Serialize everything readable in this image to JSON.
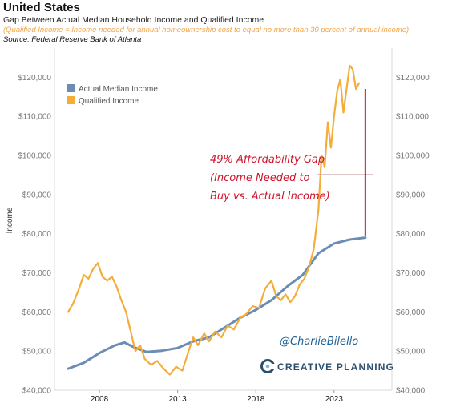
{
  "header": {
    "title": "United States",
    "subtitle": "Gap Between Actual Median Household Income and Qualified Income",
    "note": "(Qualified Income = Income needed for annual homeownership cost to equal no more than 30 percent of annual income)",
    "source": "Source: Federal Reserve Bank of Atlanta"
  },
  "colors": {
    "actual": "#6b8db5",
    "qualified": "#f4ad3a",
    "gap": "#d0142c"
  },
  "chart_data": {
    "type": "line",
    "xlabel": "",
    "ylabel": "Income",
    "xlim": [
      2006.0,
      2026.0
    ],
    "ylim": [
      40000,
      125000
    ],
    "x_ticks": [
      2008,
      2013,
      2018,
      2023
    ],
    "x_tick_labels": [
      "2008",
      "2013",
      "2018",
      "2023"
    ],
    "y_ticks": [
      40000,
      50000,
      60000,
      70000,
      80000,
      90000,
      100000,
      110000,
      120000
    ],
    "y_tick_labels": [
      "$40,000",
      "$50,000",
      "$60,000",
      "$70,000",
      "$80,000",
      "$90,000",
      "$100,000",
      "$110,000",
      "$120,000"
    ],
    "grid": false,
    "legend_position": "top-left",
    "series": [
      {
        "name": "Actual Median Income",
        "color": "#6b8db5",
        "points": [
          [
            2006.0,
            45500
          ],
          [
            2007.0,
            47000
          ],
          [
            2008.0,
            49500
          ],
          [
            2009.0,
            51500
          ],
          [
            2009.6,
            52200
          ],
          [
            2010.2,
            51000
          ],
          [
            2011.0,
            49800
          ],
          [
            2012.0,
            50100
          ],
          [
            2013.0,
            50800
          ],
          [
            2014.0,
            52500
          ],
          [
            2015.0,
            53500
          ],
          [
            2016.0,
            56000
          ],
          [
            2017.0,
            58500
          ],
          [
            2018.0,
            60500
          ],
          [
            2019.0,
            63000
          ],
          [
            2020.0,
            66500
          ],
          [
            2021.0,
            69500
          ],
          [
            2022.0,
            75000
          ],
          [
            2023.0,
            77500
          ],
          [
            2024.0,
            78500
          ],
          [
            2025.0,
            79000
          ]
        ]
      },
      {
        "name": "Qualified Income",
        "color": "#f4ad3a",
        "points": [
          [
            2006.0,
            60000
          ],
          [
            2006.3,
            62000
          ],
          [
            2006.7,
            66000
          ],
          [
            2007.0,
            69500
          ],
          [
            2007.3,
            68500
          ],
          [
            2007.6,
            71000
          ],
          [
            2007.9,
            72500
          ],
          [
            2008.2,
            69000
          ],
          [
            2008.5,
            68000
          ],
          [
            2008.8,
            69000
          ],
          [
            2009.1,
            66500
          ],
          [
            2009.4,
            63000
          ],
          [
            2009.7,
            60000
          ],
          [
            2010.0,
            55000
          ],
          [
            2010.3,
            50000
          ],
          [
            2010.6,
            51500
          ],
          [
            2010.9,
            48000
          ],
          [
            2011.3,
            46500
          ],
          [
            2011.7,
            47500
          ],
          [
            2012.1,
            45500
          ],
          [
            2012.5,
            44000
          ],
          [
            2012.9,
            46000
          ],
          [
            2013.3,
            45000
          ],
          [
            2013.7,
            50000
          ],
          [
            2014.0,
            53500
          ],
          [
            2014.3,
            51500
          ],
          [
            2014.7,
            54500
          ],
          [
            2015.0,
            52500
          ],
          [
            2015.4,
            55000
          ],
          [
            2015.8,
            53500
          ],
          [
            2016.2,
            56500
          ],
          [
            2016.6,
            55500
          ],
          [
            2017.0,
            58500
          ],
          [
            2017.4,
            59500
          ],
          [
            2017.8,
            61500
          ],
          [
            2018.2,
            61000
          ],
          [
            2018.6,
            66000
          ],
          [
            2019.0,
            68000
          ],
          [
            2019.3,
            64000
          ],
          [
            2019.6,
            63000
          ],
          [
            2019.9,
            64500
          ],
          [
            2020.2,
            62500
          ],
          [
            2020.5,
            64000
          ],
          [
            2020.8,
            67000
          ],
          [
            2021.1,
            68500
          ],
          [
            2021.4,
            71500
          ],
          [
            2021.7,
            76000
          ],
          [
            2022.0,
            86000
          ],
          [
            2022.2,
            100000
          ],
          [
            2022.4,
            97000
          ],
          [
            2022.6,
            108500
          ],
          [
            2022.8,
            102000
          ],
          [
            2023.0,
            110000
          ],
          [
            2023.2,
            116500
          ],
          [
            2023.4,
            119500
          ],
          [
            2023.6,
            111000
          ],
          [
            2023.8,
            117000
          ],
          [
            2024.0,
            123000
          ],
          [
            2024.2,
            122000
          ],
          [
            2024.4,
            117000
          ],
          [
            2024.6,
            118500
          ]
        ]
      }
    ],
    "annotations": [
      {
        "lines": [
          "49% Affordability Gap",
          "(Income Needed to",
          "Buy vs. Actual Income)"
        ],
        "color": "#d0142c",
        "gap_x": 2025.0,
        "gap_from": 79500,
        "gap_to": 117000
      }
    ]
  },
  "branding": {
    "handle": "@CharlieBilello",
    "company": "CREATIVE PLANNING"
  }
}
